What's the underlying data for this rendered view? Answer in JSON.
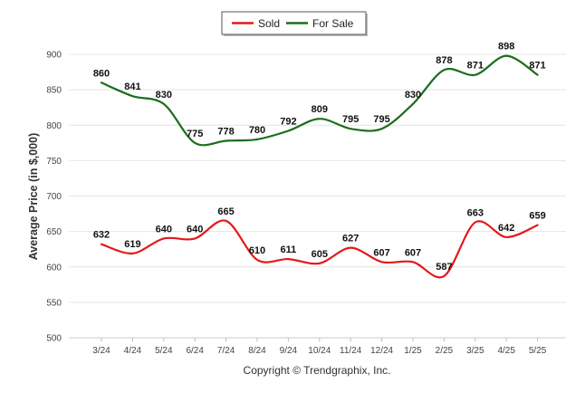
{
  "chart_data": {
    "type": "line",
    "categories": [
      "3/24",
      "4/24",
      "5/24",
      "6/24",
      "7/24",
      "8/24",
      "9/24",
      "10/24",
      "11/24",
      "12/24",
      "1/25",
      "2/25",
      "3/25",
      "4/25",
      "5/25"
    ],
    "series": [
      {
        "name": "Sold",
        "color": "#e3191c",
        "values": [
          632,
          619,
          640,
          640,
          665,
          610,
          611,
          605,
          627,
          607,
          607,
          587,
          663,
          642,
          659
        ]
      },
      {
        "name": "For Sale",
        "color": "#1b6d1b",
        "values": [
          860,
          841,
          830,
          775,
          778,
          780,
          792,
          809,
          795,
          795,
          830,
          878,
          871,
          898,
          871
        ]
      }
    ],
    "title": "",
    "xlabel": "",
    "ylabel": "Average Price (in $,000)",
    "ylim": [
      500,
      900
    ],
    "yticks": [
      500,
      550,
      600,
      650,
      700,
      750,
      800,
      850,
      900
    ],
    "grid": true,
    "legend": "top-center",
    "credit": "Copyright © Trendgraphix, Inc."
  }
}
